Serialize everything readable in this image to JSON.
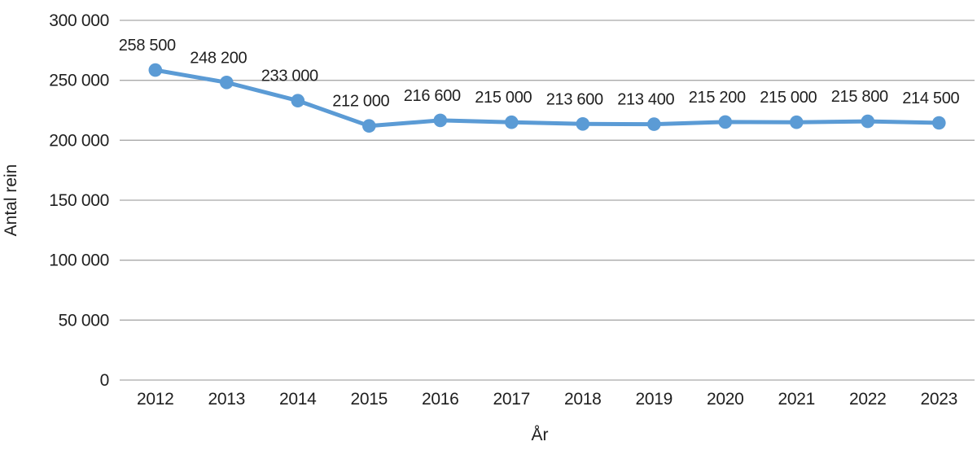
{
  "chart_data": {
    "type": "line",
    "xlabel": "År",
    "ylabel": "Antal rein",
    "categories": [
      "2012",
      "2013",
      "2014",
      "2015",
      "2016",
      "2017",
      "2018",
      "2019",
      "2020",
      "2021",
      "2022",
      "2023"
    ],
    "values": [
      258500,
      248200,
      233000,
      212000,
      216600,
      215000,
      213600,
      213400,
      215200,
      215000,
      215800,
      214500
    ],
    "data_labels": [
      "258 500",
      "248 200",
      "233 000",
      "212 000",
      "216 600",
      "215 000",
      "213 600",
      "213 400",
      "215 200",
      "215 000",
      "215 800",
      "214 500"
    ],
    "ylim": [
      0,
      300000
    ],
    "ytick_interval": 50000,
    "yticks": [
      {
        "value": 0,
        "label": "0"
      },
      {
        "value": 50000,
        "label": "50 000"
      },
      {
        "value": 100000,
        "label": "100 000"
      },
      {
        "value": 150000,
        "label": "150 000"
      },
      {
        "value": 200000,
        "label": "200 000"
      },
      {
        "value": 250000,
        "label": "250 000"
      },
      {
        "value": 300000,
        "label": "300 000"
      }
    ],
    "grid": true,
    "legend": "none",
    "series_name": "Antal rein",
    "series_color": "#5B9BD5",
    "gridline_color": "#A9A9A9",
    "axis_line_color": "#A9A9A9",
    "text_color": "#1f1f1f",
    "background_color": "#ffffff"
  }
}
